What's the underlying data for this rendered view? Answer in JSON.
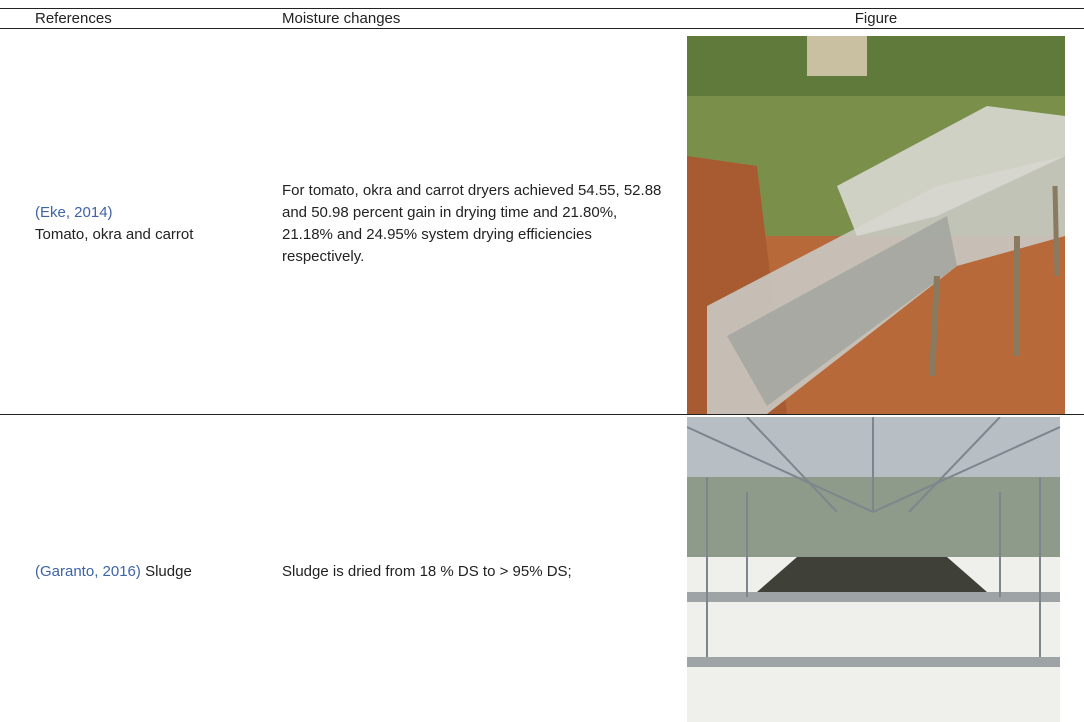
{
  "table": {
    "header": [
      "References",
      "Moisture changes",
      "Figure"
    ],
    "rows": [
      {
        "citation": "(Eke, 2014)",
        "subject": "Tomato, okra and carrot",
        "moisture": "For tomato, okra and carrot dryers achieved 54.55, 52.88 and 50.98 percent gain in drying time and 21.80%, 21.18% and 24.95% system drying efficiencies respectively."
      },
      {
        "citation": "(Garanto, 2016)",
        "subject": "Sludge",
        "moisture": "Sludge is dried from 18 % DS to > 95% DS;"
      }
    ]
  }
}
